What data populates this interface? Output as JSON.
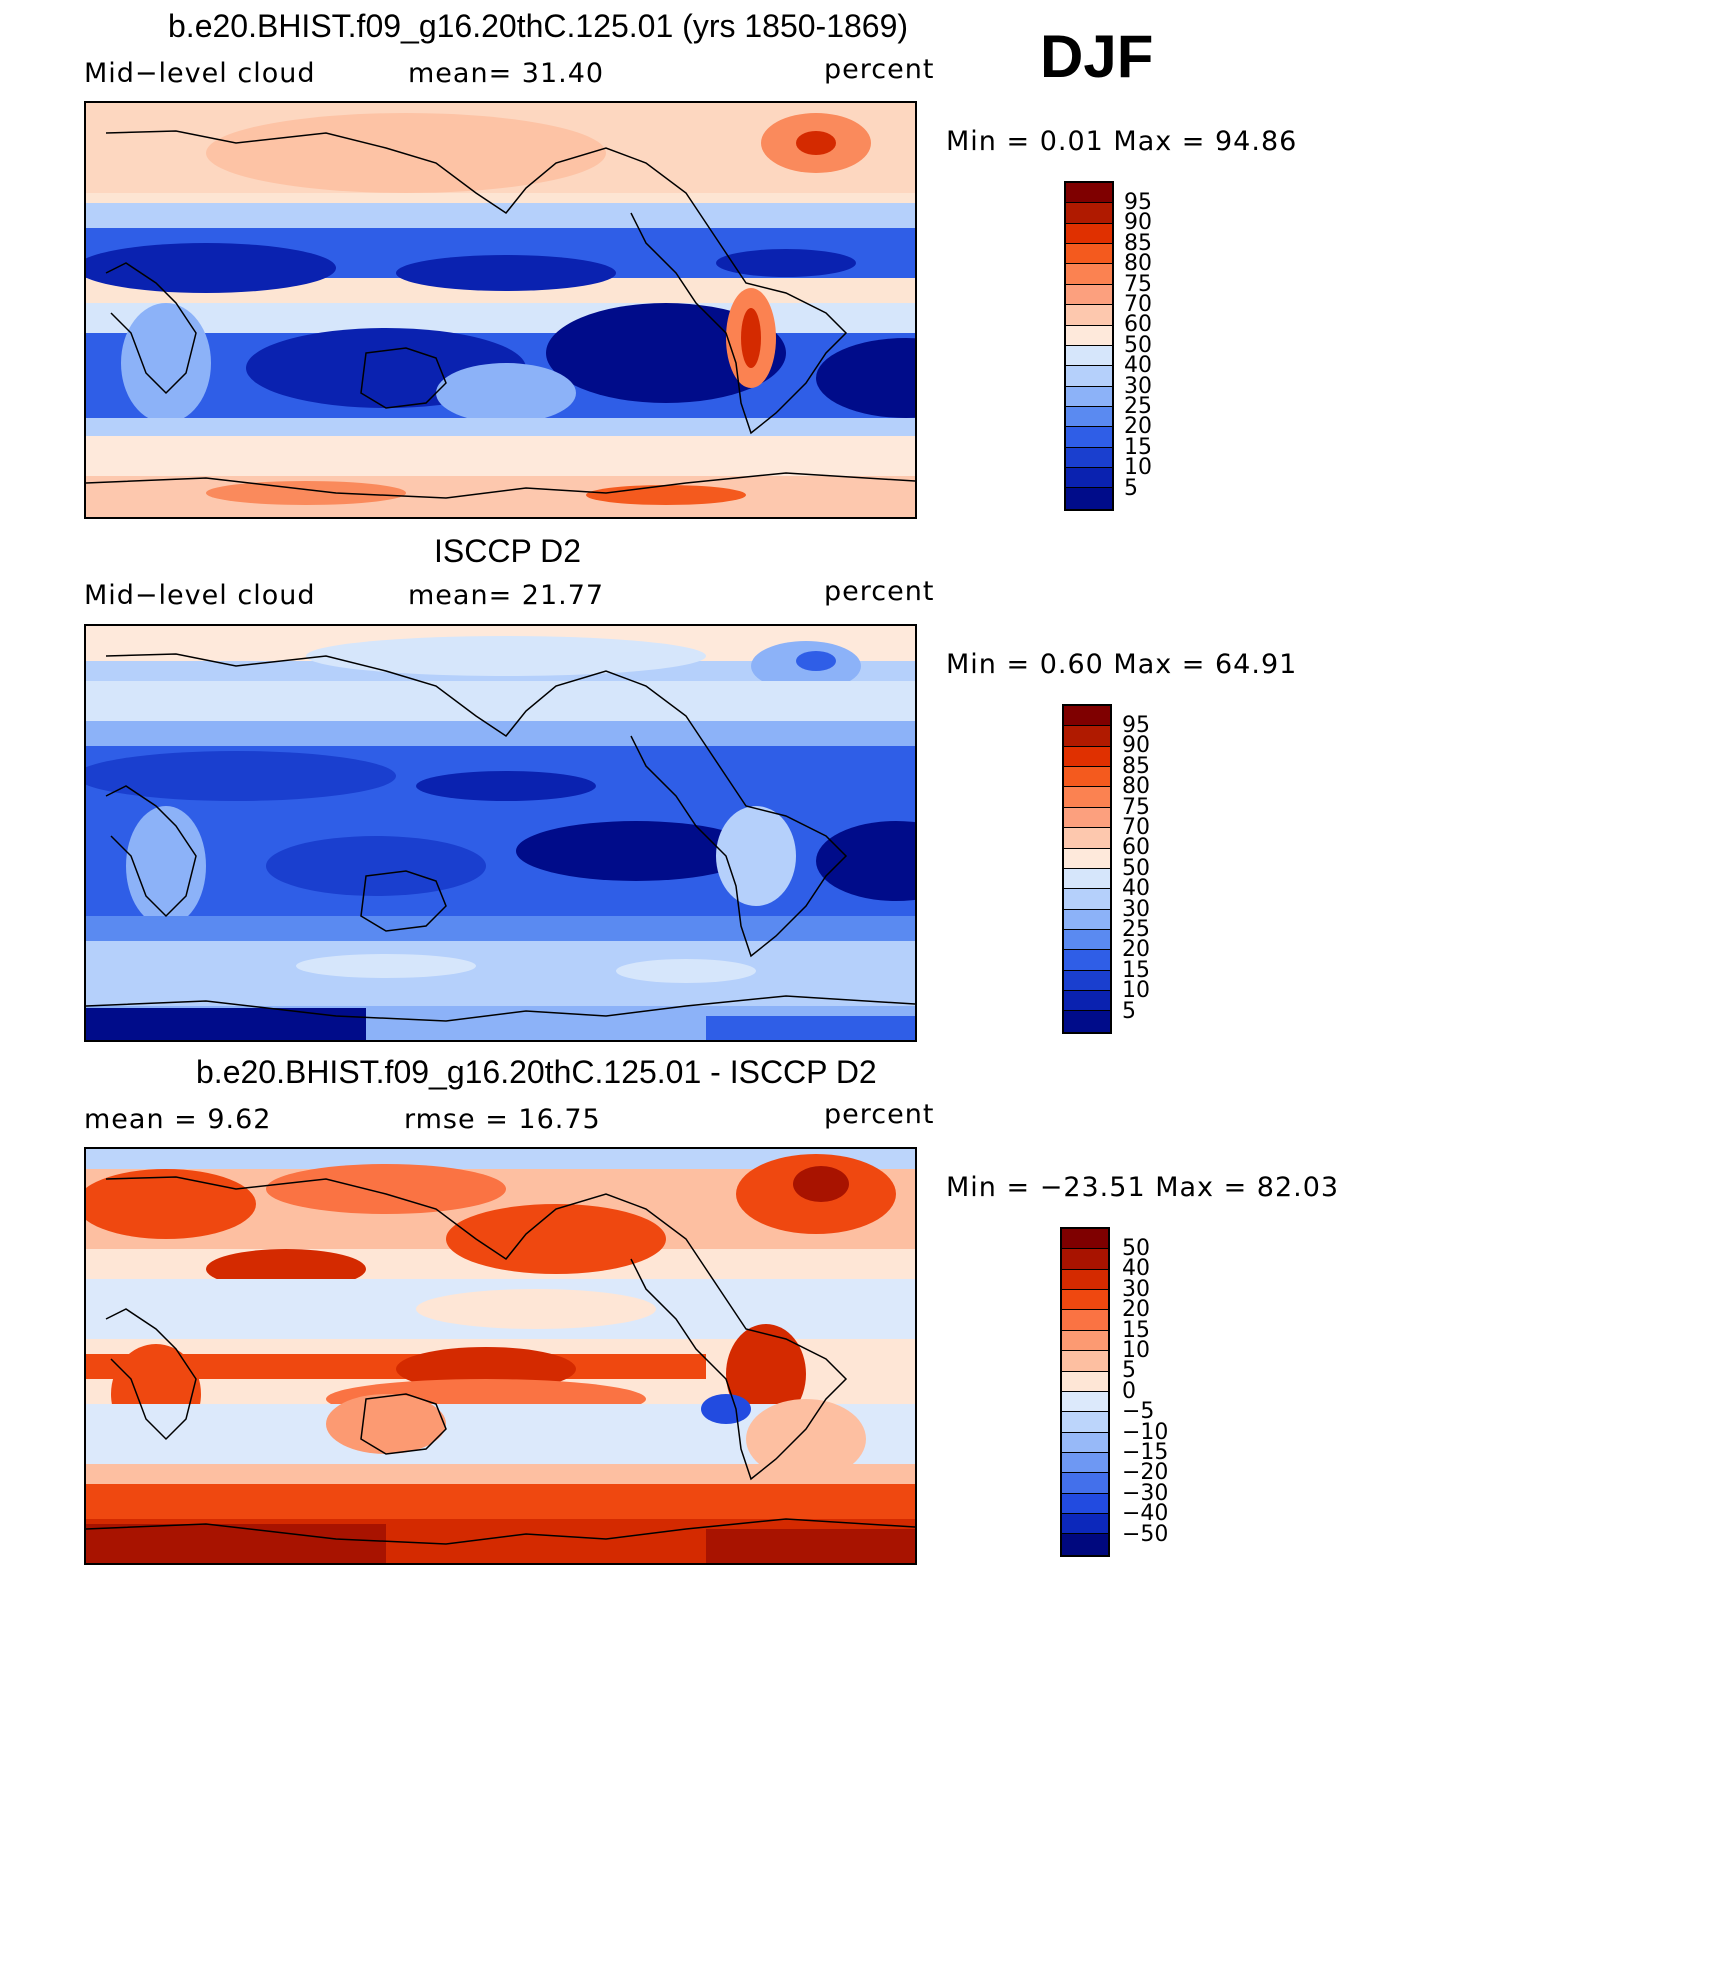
{
  "season": "DJF",
  "panels": [
    {
      "title": "b.e20.BHIST.f09_g16.20thC.125.01 (yrs 1850-1869)",
      "left_label": "Mid−level  cloud",
      "center_label": "mean=   31.40",
      "units": "percent",
      "minmax": "Min  =      0.01  Max  =    94.86",
      "colorbar_labels": [
        "95",
        "90",
        "85",
        "80",
        "75",
        "70",
        "60",
        "50",
        "40",
        "30",
        "25",
        "20",
        "15",
        "10",
        "5"
      ]
    },
    {
      "title": "ISCCP D2",
      "left_label": "Mid−level  cloud",
      "center_label": "mean=   21.77",
      "units": "percent",
      "minmax": "Min  =      0.60  Max  =    64.91",
      "colorbar_labels": [
        "95",
        "90",
        "85",
        "80",
        "75",
        "70",
        "60",
        "50",
        "40",
        "30",
        "25",
        "20",
        "15",
        "10",
        "5"
      ]
    },
    {
      "title": "b.e20.BHIST.f09_g16.20thC.125.01 - ISCCP D2",
      "left_label": "mean  =      9.62",
      "center_label": "rmse  =     16.75",
      "units": "percent",
      "minmax": "Min  =  −23.51  Max  =    82.03",
      "colorbar_labels": [
        "50",
        "40",
        "30",
        "20",
        "15",
        "10",
        "5",
        "0",
        "−5",
        "−10",
        "−15",
        "−20",
        "−30",
        "−40",
        "−50"
      ]
    }
  ],
  "colors": {
    "abs_scale": [
      "#7f0000",
      "#b01a00",
      "#e03000",
      "#f45a1e",
      "#fb8251",
      "#fca07e",
      "#fdc8ae",
      "#fee9db",
      "#d6e6fb",
      "#b5d0fb",
      "#8cb2f8",
      "#5a8af1",
      "#2f5ee7",
      "#1a3fcf",
      "#0a22b0",
      "#000c8a"
    ],
    "diff_scale": [
      "#7f0000",
      "#a81300",
      "#d42a00",
      "#ef4810",
      "#fa7343",
      "#fc9a72",
      "#fdbfa1",
      "#fee6d6",
      "#dce9fb",
      "#bcd5fb",
      "#97b9f8",
      "#6e98f3",
      "#4370eb",
      "#224be0",
      "#0c28bb",
      "#00087e"
    ]
  }
}
